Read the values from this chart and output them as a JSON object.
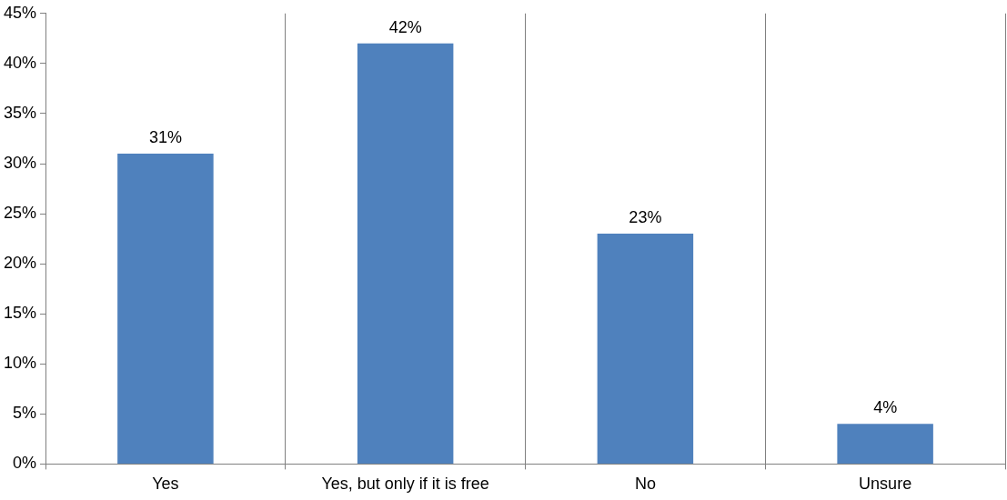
{
  "chart_data": {
    "type": "bar",
    "categories": [
      "Yes",
      "Yes, but only if it is free",
      "No",
      "Unsure"
    ],
    "values": [
      31,
      42,
      23,
      4
    ],
    "value_labels": [
      "31%",
      "42%",
      "23%",
      "4%"
    ],
    "color": "#4f81bd",
    "ylim": [
      0,
      45
    ],
    "yticks": [
      {
        "value": 0,
        "label": "0%"
      },
      {
        "value": 5,
        "label": "5%"
      },
      {
        "value": 10,
        "label": "10%"
      },
      {
        "value": 15,
        "label": "15%"
      },
      {
        "value": 20,
        "label": "20%"
      },
      {
        "value": 25,
        "label": "25%"
      },
      {
        "value": 30,
        "label": "30%"
      },
      {
        "value": 35,
        "label": "35%"
      },
      {
        "value": 40,
        "label": "40%"
      },
      {
        "value": 45,
        "label": "45%"
      }
    ],
    "grid": "x",
    "legend": false
  }
}
